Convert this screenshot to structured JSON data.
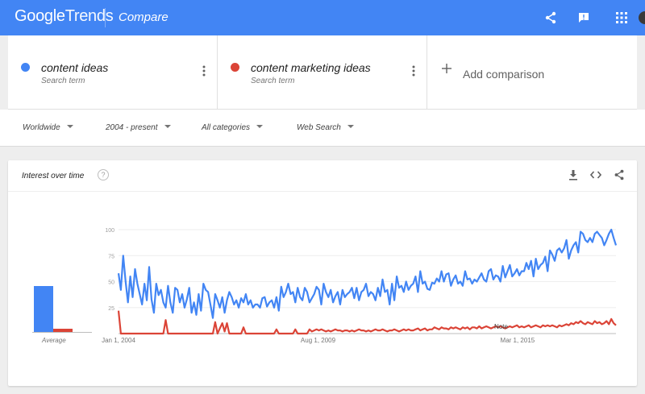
{
  "header": {
    "logo_google": "Google",
    "logo_trends": "Trends",
    "page_name": "Compare",
    "bg_color": "#4285f4",
    "icons": [
      "share-icon",
      "feedback-icon",
      "apps-icon",
      "avatar"
    ]
  },
  "terms": [
    {
      "name": "content ideas",
      "subtitle": "Search term",
      "color": "#4285f4"
    },
    {
      "name": "content marketing ideas",
      "subtitle": "Search term",
      "color": "#db4437"
    }
  ],
  "add_comparison": {
    "label": "Add comparison"
  },
  "filters": [
    {
      "label": "Worldwide"
    },
    {
      "label": "2004 - present"
    },
    {
      "label": "All categories"
    },
    {
      "label": "Web Search"
    }
  ],
  "card": {
    "title": "Interest over time",
    "help": "?",
    "actions": [
      "download-icon",
      "embed-icon",
      "share-icon"
    ]
  },
  "averages": {
    "label": "Average",
    "values": [
      {
        "term": "content ideas",
        "value": 46
      },
      {
        "term": "content marketing ideas",
        "value": 3
      }
    ]
  },
  "chart_data": {
    "type": "line",
    "x_start": "Jan 1, 2004",
    "x_end": "Dec 1, 2017",
    "x_tick_labels": [
      "Jan 1, 2004",
      "Aug 1, 2009",
      "Mar 1, 2015"
    ],
    "y_tick_labels": [
      "100",
      "75",
      "50",
      "25"
    ],
    "ylim": [
      0,
      100
    ],
    "grid": true,
    "annotation": "Note",
    "series": [
      {
        "name": "content ideas",
        "color": "#4285f4",
        "values": [
          58,
          42,
          75,
          50,
          30,
          55,
          35,
          62,
          48,
          38,
          28,
          48,
          32,
          64,
          33,
          20,
          48,
          37,
          42,
          30,
          25,
          46,
          30,
          20,
          44,
          42,
          30,
          38,
          25,
          33,
          44,
          20,
          30,
          18,
          38,
          22,
          48,
          42,
          40,
          28,
          15,
          38,
          32,
          25,
          35,
          20,
          32,
          40,
          35,
          28,
          32,
          25,
          34,
          30,
          38,
          28,
          32,
          25,
          28,
          28,
          25,
          34,
          35,
          26,
          30,
          32,
          25,
          35,
          22,
          45,
          35,
          40,
          48,
          38,
          40,
          30,
          44,
          35,
          32,
          44,
          40,
          30,
          34,
          38,
          45,
          42,
          28,
          48,
          40,
          35,
          42,
          30,
          36,
          40,
          28,
          42,
          35,
          38,
          40,
          44,
          34,
          44,
          32,
          40,
          42,
          48,
          36,
          40,
          38,
          32,
          44,
          36,
          52,
          40,
          42,
          28,
          48,
          32,
          55,
          44,
          46,
          40,
          50,
          42,
          46,
          48,
          55,
          40,
          60,
          48,
          50,
          43,
          42,
          49,
          48,
          53,
          50,
          60,
          50,
          57,
          58,
          46,
          52,
          56,
          48,
          50,
          46,
          60,
          52,
          53,
          48,
          52,
          50,
          54,
          58,
          52,
          50,
          60,
          62,
          52,
          56,
          55,
          50,
          65,
          54,
          60,
          66,
          55,
          58,
          62,
          56,
          60,
          60,
          68,
          62,
          70,
          55,
          72,
          62,
          66,
          68,
          74,
          60,
          80,
          76,
          70,
          80,
          82,
          78,
          82,
          90,
          72,
          80,
          85,
          88,
          78,
          98,
          96,
          90,
          88,
          92,
          88,
          96,
          98,
          95,
          92,
          85,
          90,
          96,
          100,
          92,
          85
        ]
      },
      {
        "name": "content marketing ideas",
        "color": "#db4437",
        "values": [
          22,
          0,
          0,
          0,
          0,
          0,
          0,
          0,
          0,
          0,
          0,
          0,
          0,
          0,
          0,
          0,
          0,
          0,
          0,
          0,
          13,
          0,
          0,
          0,
          0,
          0,
          0,
          0,
          0,
          0,
          0,
          0,
          0,
          0,
          0,
          0,
          0,
          0,
          0,
          0,
          0,
          11,
          0,
          5,
          10,
          2,
          10,
          0,
          0,
          0,
          0,
          0,
          0,
          6,
          0,
          0,
          0,
          0,
          0,
          0,
          0,
          0,
          0,
          0,
          0,
          0,
          0,
          4,
          0,
          0,
          0,
          0,
          0,
          0,
          0,
          4,
          0,
          0,
          0,
          0,
          0,
          4,
          2,
          3,
          4,
          3,
          4,
          3,
          2,
          3,
          2,
          3,
          4,
          3,
          3,
          2,
          3,
          3,
          2,
          3,
          2,
          3,
          4,
          3,
          3,
          2,
          3,
          2,
          3,
          4,
          3,
          3,
          4,
          3,
          2,
          3,
          3,
          4,
          3,
          2,
          3,
          4,
          3,
          4,
          3,
          3,
          4,
          5,
          3,
          4,
          5,
          3,
          4,
          4,
          6,
          5,
          4,
          6,
          5,
          5,
          4,
          6,
          5,
          6,
          5,
          4,
          6,
          5,
          6,
          4,
          6,
          6,
          5,
          7,
          5,
          6,
          7,
          6,
          5,
          6,
          7,
          6,
          7,
          6,
          5,
          6,
          7,
          6,
          7,
          8,
          6,
          7,
          6,
          7,
          8,
          6,
          7,
          8,
          7,
          6,
          8,
          7,
          8,
          7,
          8,
          7,
          6,
          8,
          7,
          8,
          9,
          8,
          10,
          9,
          11,
          10,
          12,
          10,
          9,
          11,
          10,
          9,
          12,
          10,
          11,
          9,
          10,
          12,
          9,
          14,
          10,
          8
        ]
      }
    ]
  }
}
